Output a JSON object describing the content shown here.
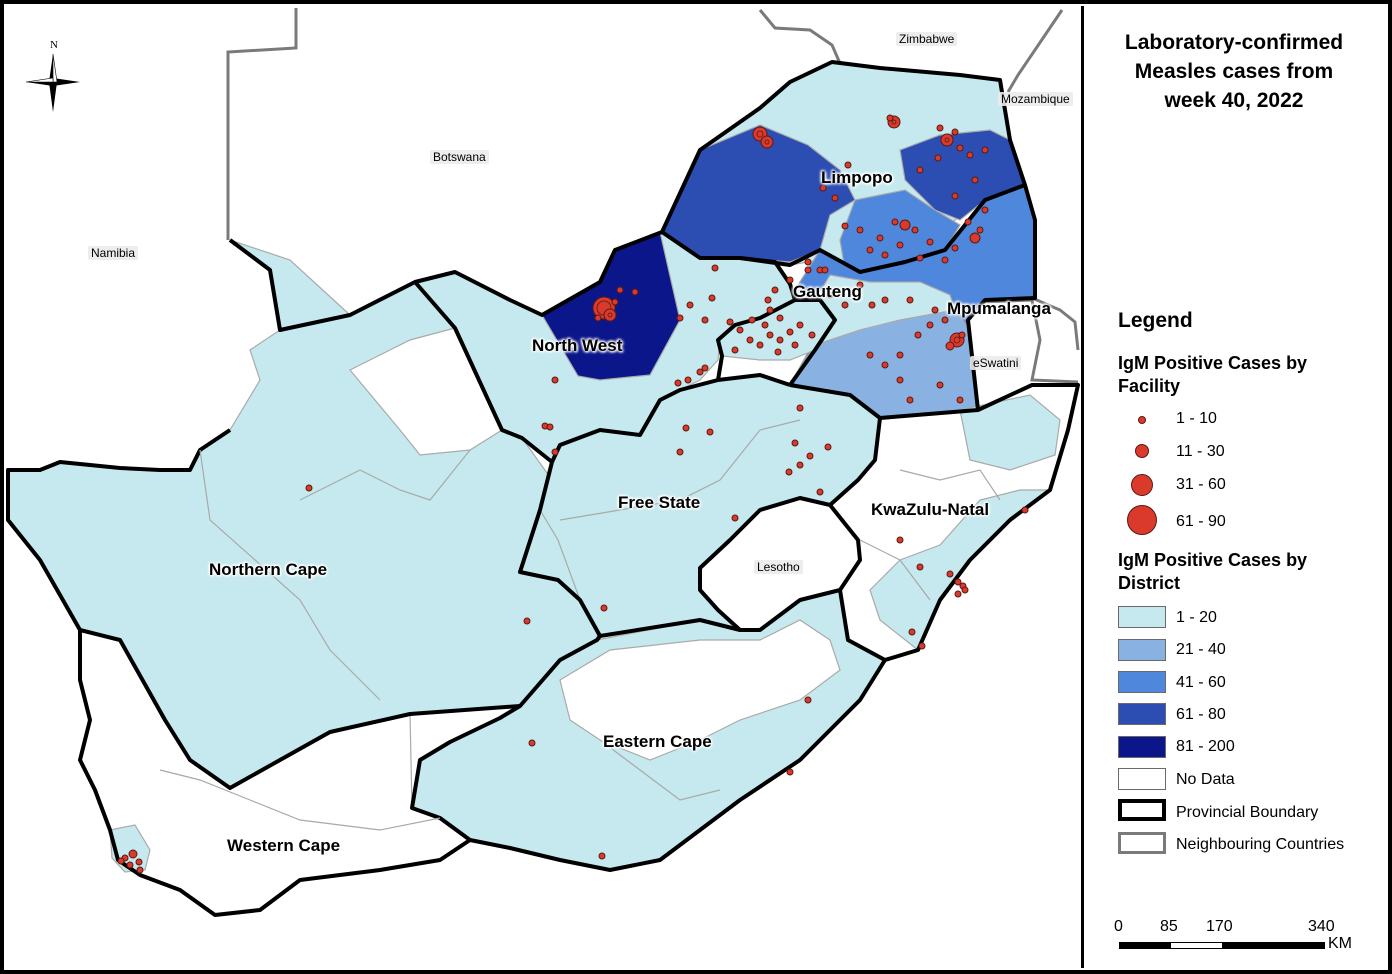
{
  "title": "Laboratory-confirmed Measles cases from week 40, 2022",
  "title_lines": [
    "Laboratory-confirmed",
    "Measles cases from",
    "week 40, 2022"
  ],
  "north_label": "N",
  "provinces": [
    "Limpopo",
    "Gauteng",
    "Mpumalanga",
    "North West",
    "Free State",
    "KwaZulu-Natal",
    "Northern Cape",
    "Eastern Cape",
    "Western Cape"
  ],
  "countries": [
    "Zimbabwe",
    "Mozambique",
    "Botswana",
    "Namibia",
    "eSwatini",
    "Lesotho"
  ],
  "legend": {
    "heading": "Legend",
    "facility_heading": "IgM Positive Cases by Facility",
    "facility_heading_lines": [
      "IgM Positive Cases by",
      "Facility"
    ],
    "facility_classes": [
      "1 - 10",
      "11 - 30",
      "31 - 60",
      "61 - 90"
    ],
    "district_heading": "IgM Positive Cases by District",
    "district_heading_lines": [
      "IgM Positive Cases by",
      "District"
    ],
    "district_classes": [
      "1 - 20",
      "21 - 40",
      "41 - 60",
      "61 - 80",
      "81 - 200"
    ],
    "no_data": "No Data",
    "provincial_boundary": "Provincial Boundary",
    "neighbouring_countries": "Neighbouring Countries"
  },
  "scale_bar": {
    "ticks": [
      "0",
      "85",
      "170",
      "340"
    ],
    "unit": "KM"
  },
  "colors": {
    "class_1_20": "#c5e9ee",
    "class_21_40": "#89b2e2",
    "class_41_60": "#4f87dc",
    "class_61_80": "#2c4db2",
    "class_81_200": "#0b168a",
    "no_data": "#ffffff",
    "facility_marker": "#d93a2b",
    "provincial_boundary": "#000000",
    "neighbour_boundary": "#7a7a7a"
  }
}
